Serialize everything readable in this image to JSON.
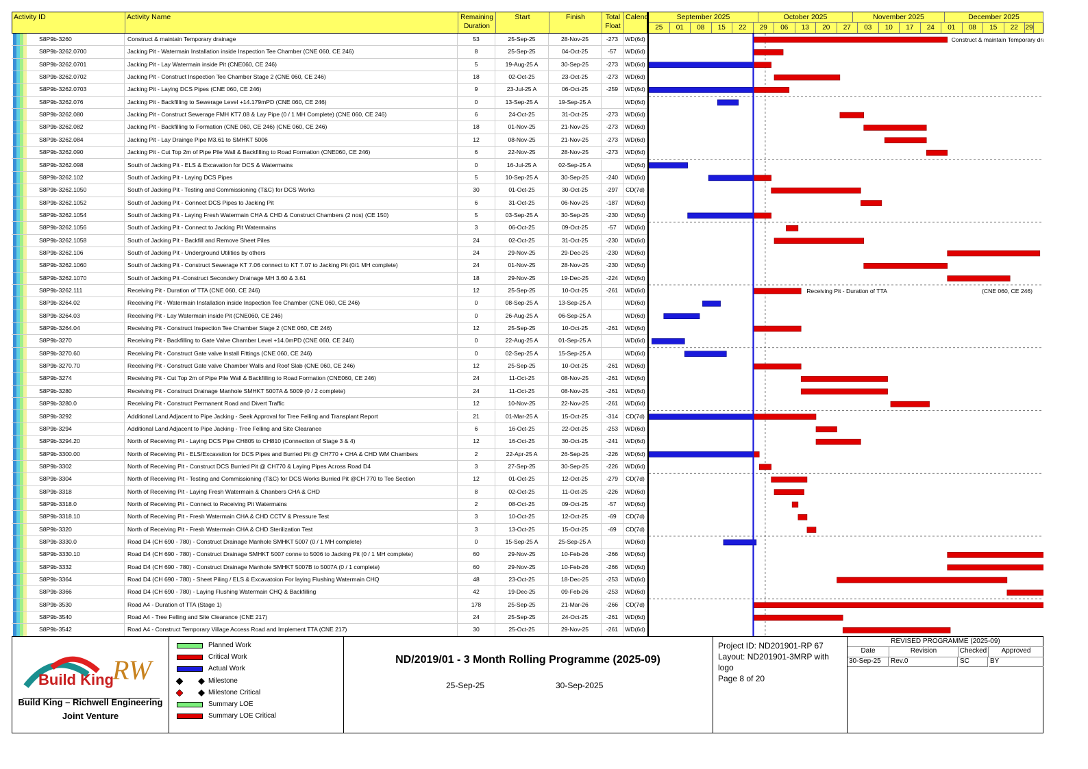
{
  "header": {
    "activity_id": "Activity ID",
    "activity_name": "Activity Name",
    "remaining_duration": "Remaining Duration",
    "start": "Start",
    "finish": "Finish",
    "total_float": "Total Float",
    "calendar": "Calendar"
  },
  "timeline": {
    "months": [
      "September 2025",
      "October 2025",
      "November 2025",
      "December 2025"
    ],
    "weeks": [
      "25",
      "01",
      "08",
      "15",
      "22",
      "29",
      "06",
      "13",
      "20",
      "27",
      "03",
      "10",
      "17",
      "24",
      "01",
      "08",
      "15",
      "22",
      "29"
    ]
  },
  "activities": [
    {
      "id": "S8P9b-3260",
      "name": "Construct & maintain Temporary drainage",
      "rem": "53",
      "start": "25-Sep-25",
      "finish": "28-Nov-25",
      "tf": "-273",
      "cal": "WD(6d)"
    },
    {
      "id": "S8P9b-3262.0700",
      "name": "Jacking Pit - Watermain Installation inside Inspection Tee Chamber   (CNE 060, CE 246)",
      "rem": "8",
      "start": "25-Sep-25",
      "finish": "04-Oct-25",
      "tf": "-57",
      "cal": "WD(6d)"
    },
    {
      "id": "S8P9b-3262.0701",
      "name": "Jacking Pit - Lay Watermain inside Pit                                       (CNE060, CE 246)",
      "rem": "5",
      "start": "19-Aug-25 A",
      "finish": "30-Sep-25",
      "tf": "-273",
      "cal": "WD(6d)"
    },
    {
      "id": "S8P9b-3262.0702",
      "name": "Jacking Pit - Construct Inspection Tee Chamber Stage 2     (CNE 060, CE 246)",
      "rem": "18",
      "start": "02-Oct-25",
      "finish": "23-Oct-25",
      "tf": "-273",
      "cal": "WD(6d)"
    },
    {
      "id": "S8P9b-3262.0703",
      "name": "Jacking Pit - Laying DCS Pipes                                               (CNE 060, CE 246)",
      "rem": "9",
      "start": "23-Jul-25 A",
      "finish": "06-Oct-25",
      "tf": "-259",
      "cal": "WD(6d)"
    },
    {
      "id": "S8P9b-3262.076",
      "name": "Jacking Pit - Backfilling to Sewerage Level +14.179mPD                         (CNE 060, CE 246)",
      "rem": "0",
      "start": "13-Sep-25 A",
      "finish": "19-Sep-25 A",
      "tf": "",
      "cal": "WD(6d)"
    },
    {
      "id": "S8P9b-3262.080",
      "name": "Jacking Pit - Construct Sewerage FMH KT7.08 & Lay Pipe (0 / 1 MH Complete)             (CNE 060, CE 246)",
      "rem": "6",
      "start": "24-Oct-25",
      "finish": "31-Oct-25",
      "tf": "-273",
      "cal": "WD(6d)"
    },
    {
      "id": "S8P9b-3262.082",
      "name": "Jacking Pit - Backfilling to Formation (CNE 060, CE 246)                                  (CNE 060, CE 246)",
      "rem": "18",
      "start": "01-Nov-25",
      "finish": "21-Nov-25",
      "tf": "-273",
      "cal": "WD(6d)"
    },
    {
      "id": "S8P9b-3262.084",
      "name": "Jacking Pit - Lay Drainge Pipe M3.61 to SMHKT 5006",
      "rem": "12",
      "start": "08-Nov-25",
      "finish": "21-Nov-25",
      "tf": "-273",
      "cal": "WD(6d)"
    },
    {
      "id": "S8P9b-3262.090",
      "name": "Jacking Pit - Cut Top 2m of Pipe Pile Wall & Backfilling to Road Formation          (CNE060, CE 246)",
      "rem": "6",
      "start": "22-Nov-25",
      "finish": "28-Nov-25",
      "tf": "-273",
      "cal": "WD(6d)"
    },
    {
      "id": "S8P9b-3262.098",
      "name": "South of Jacking Pit - ELS & Excavation for DCS & Watermains",
      "rem": "0",
      "start": "16-Jul-25 A",
      "finish": "02-Sep-25 A",
      "tf": "",
      "cal": "WD(6d)"
    },
    {
      "id": "S8P9b-3262.102",
      "name": "South of Jacking Pit - Laying DCS Pipes",
      "rem": "5",
      "start": "10-Sep-25 A",
      "finish": "30-Sep-25",
      "tf": "-240",
      "cal": "WD(6d)"
    },
    {
      "id": "S8P9b-3262.1050",
      "name": "South of Jacking Pit - Testing and Commissioning (T&C) for DCS Works",
      "rem": "30",
      "start": "01-Oct-25",
      "finish": "30-Oct-25",
      "tf": "-297",
      "cal": "CD(7d)"
    },
    {
      "id": "S8P9b-3262.1052",
      "name": "South of Jacking Pit -  Connect DCS Pipes to Jacking Pit",
      "rem": "6",
      "start": "31-Oct-25",
      "finish": "06-Nov-25",
      "tf": "-187",
      "cal": "WD(6d)"
    },
    {
      "id": "S8P9b-3262.1054",
      "name": "South of Jacking Pit - Laying Fresh Watermain  CHA & CHD & Construct Chambers (2 nos)          (CE 150)",
      "rem": "5",
      "start": "03-Sep-25 A",
      "finish": "30-Sep-25",
      "tf": "-230",
      "cal": "WD(6d)"
    },
    {
      "id": "S8P9b-3262.1056",
      "name": "South of Jacking Pit - Connect to Jacking Pit Watermains",
      "rem": "3",
      "start": "06-Oct-25",
      "finish": "09-Oct-25",
      "tf": "-57",
      "cal": "WD(6d)"
    },
    {
      "id": "S8P9b-3262.1058",
      "name": "South of Jacking Pit - Backfill and Remove Sheet Piles",
      "rem": "24",
      "start": "02-Oct-25",
      "finish": "31-Oct-25",
      "tf": "-230",
      "cal": "WD(6d)"
    },
    {
      "id": "S8P9b-3262.106",
      "name": "South of Jacking Pit - Underground Utilities by others",
      "rem": "24",
      "start": "29-Nov-25",
      "finish": "29-Dec-25",
      "tf": "-230",
      "cal": "WD(6d)"
    },
    {
      "id": "S8P9b-3262.1060",
      "name": "South of Jacking Pit - Construct Sewerage KT 7.06 connect to KT 7.07 to Jacking Pit (0/1 MH complete)",
      "rem": "24",
      "start": "01-Nov-25",
      "finish": "28-Nov-25",
      "tf": "-230",
      "cal": "WD(6d)"
    },
    {
      "id": "S8P9b-3262.1070",
      "name": "South of Jacking Pit -Construct Secondery Drainage MH 3.60 & 3.61",
      "rem": "18",
      "start": "29-Nov-25",
      "finish": "19-Dec-25",
      "tf": "-224",
      "cal": "WD(6d)"
    },
    {
      "id": "S8P9b-3262.111",
      "name": "Receiving Pit - Duration of TTA                                                     (CNE 060, CE 246)",
      "rem": "12",
      "start": "25-Sep-25",
      "finish": "10-Oct-25",
      "tf": "-261",
      "cal": "WD(6d)"
    },
    {
      "id": "S8P9b-3264.02",
      "name": "Receiving Pit - Watermain Installation inside Inspection Tee Chamber        (CNE 060, CE 246)",
      "rem": "0",
      "start": "08-Sep-25 A",
      "finish": "13-Sep-25 A",
      "tf": "",
      "cal": "WD(6d)"
    },
    {
      "id": "S8P9b-3264.03",
      "name": "Receiving Pit - Lay Watermain inside Pit                                            (CNE060, CE 246)",
      "rem": "0",
      "start": "26-Aug-25 A",
      "finish": "06-Sep-25 A",
      "tf": "",
      "cal": "WD(6d)"
    },
    {
      "id": "S8P9b-3264.04",
      "name": "Receiving Pit - Construct Inspection Tee Chamber Stage 2                         (CNE 060, CE 246)",
      "rem": "12",
      "start": "25-Sep-25",
      "finish": "10-Oct-25",
      "tf": "-261",
      "cal": "WD(6d)"
    },
    {
      "id": "S8P9b-3270",
      "name": "Receiving Pit - Backfilling to Gate Valve Chamber Level    +14.0mPD              (CNE 060, CE 246)",
      "rem": "0",
      "start": "22-Aug-25 A",
      "finish": "01-Sep-25 A",
      "tf": "",
      "cal": "WD(6d)"
    },
    {
      "id": "S8P9b-3270.60",
      "name": "Receiving Pit - Construct Gate valve Install Fittings                (CNE 060, CE 246)",
      "rem": "0",
      "start": "02-Sep-25 A",
      "finish": "15-Sep-25 A",
      "tf": "",
      "cal": "WD(6d)"
    },
    {
      "id": "S8P9b-3270.70",
      "name": "Receiving Pit - Construct Gate valve Chamber Walls and Roof Slab    (CNE 060, CE 246)",
      "rem": "12",
      "start": "25-Sep-25",
      "finish": "10-Oct-25",
      "tf": "-261",
      "cal": "WD(6d)"
    },
    {
      "id": "S8P9b-3274",
      "name": "Receiving Pit - Cut Top 2m of Pipe Pile Wall & Backfilling to Road Formation        (CNE060, CE 246)",
      "rem": "24",
      "start": "11-Oct-25",
      "finish": "08-Nov-25",
      "tf": "-261",
      "cal": "WD(6d)"
    },
    {
      "id": "S8P9b-3280",
      "name": "Receiving Pit - Construct Drainage Manhole SMHKT 5007A & 5009 (0 / 2 complete)",
      "rem": "24",
      "start": "11-Oct-25",
      "finish": "08-Nov-25",
      "tf": "-261",
      "cal": "WD(6d)"
    },
    {
      "id": "S8P9b-3280.0",
      "name": "Receiving Pit -  Construct Permanent Road and Divert Traffic",
      "rem": "12",
      "start": "10-Nov-25",
      "finish": "22-Nov-25",
      "tf": "-261",
      "cal": "WD(6d)"
    },
    {
      "id": "S8P9b-3292",
      "name": "Additional Land Adjacent to Pipe Jacking - Seek Approval for Tree Felling and Transplant Report",
      "rem": "21",
      "start": "01-Mar-25 A",
      "finish": "15-Oct-25",
      "tf": "-314",
      "cal": "CD(7d)"
    },
    {
      "id": "S8P9b-3294",
      "name": "Additional Land Adjacent to Pipe Jacking - Tree Felling and Site Clearance",
      "rem": "6",
      "start": "16-Oct-25",
      "finish": "22-Oct-25",
      "tf": "-253",
      "cal": "WD(6d)"
    },
    {
      "id": "S8P9b-3294.20",
      "name": "North of Receiving Pit - Laying DCS Pipe CH805 to CH810  (Connection of Stage 3 & 4)",
      "rem": "12",
      "start": "16-Oct-25",
      "finish": "30-Oct-25",
      "tf": "-241",
      "cal": "WD(6d)"
    },
    {
      "id": "S8P9b-3300.00",
      "name": "North of Receiving Pit - ELS/Excavation for DCS Pipes and Burried Pit @ CH770 + CHA & CHD WM Chambers",
      "rem": "2",
      "start": "22-Apr-25 A",
      "finish": "26-Sep-25",
      "tf": "-226",
      "cal": "WD(6d)"
    },
    {
      "id": "S8P9b-3302",
      "name": "North of Receiving Pit - Construct DCS Burried Pit @ CH770 & Laying Pipes Across Road D4",
      "rem": "3",
      "start": "27-Sep-25",
      "finish": "30-Sep-25",
      "tf": "-226",
      "cal": "WD(6d)"
    },
    {
      "id": "S8P9b-3304",
      "name": "North of Receiving Pit - Testing and Commissioning (T&C) for DCS Works Burried Pit @CH 770 to Tee Section",
      "rem": "12",
      "start": "01-Oct-25",
      "finish": "12-Oct-25",
      "tf": "-279",
      "cal": "CD(7d)"
    },
    {
      "id": "S8P9b-3318",
      "name": "North of Receiving Pit - Laying Fresh Watermain & Chanbers CHA & CHD",
      "rem": "8",
      "start": "02-Oct-25",
      "finish": "11-Oct-25",
      "tf": "-226",
      "cal": "WD(6d)"
    },
    {
      "id": "S8P9b-3318.0",
      "name": "North of Receiving Pit - Connect to Receiving Pit Watermains",
      "rem": "2",
      "start": "08-Oct-25",
      "finish": "09-Oct-25",
      "tf": "-57",
      "cal": "WD(6d)"
    },
    {
      "id": "S8P9b-3318.10",
      "name": "North of Receiving Pit - Fresh Watermain CHA & CHD CCTV & Pressure Test",
      "rem": "3",
      "start": "10-Oct-25",
      "finish": "12-Oct-25",
      "tf": "-69",
      "cal": "CD(7d)"
    },
    {
      "id": "S8P9b-3320",
      "name": "North of Receiving Pit - Fresh Watermain CHA & CHD Sterilization Test",
      "rem": "3",
      "start": "13-Oct-25",
      "finish": "15-Oct-25",
      "tf": "-69",
      "cal": "CD(7d)"
    },
    {
      "id": "S8P9b-3330.0",
      "name": "Road D4 (CH 690 - 780) - Construct Drainage Manhole SMHKT 5007 (0 / 1 MH complete)",
      "rem": "0",
      "start": "15-Sep-25 A",
      "finish": "25-Sep-25 A",
      "tf": "",
      "cal": "WD(6d)"
    },
    {
      "id": "S8P9b-3330.10",
      "name": "Road D4 (CH 690 - 780) - Construct Drainage SMHKT 5007 conne to 5006 to Jacking Pit  (0 / 1 MH complete)",
      "rem": "60",
      "start": "29-Nov-25",
      "finish": "10-Feb-26",
      "tf": "-266",
      "cal": "WD(6d)"
    },
    {
      "id": "S8P9b-3332",
      "name": "Road D4 (CH 690 - 780) - Construct Drainage Manhole SMHKT 5007B to 5007A (0 / 1 complete)",
      "rem": "60",
      "start": "29-Nov-25",
      "finish": "10-Feb-26",
      "tf": "-266",
      "cal": "WD(6d)"
    },
    {
      "id": "S8P9b-3364",
      "name": "Road D4 (CH 690 - 780) - Sheet Piling / ELS & Excavatoion For laying Flushing Watermain CHQ",
      "rem": "48",
      "start": "23-Oct-25",
      "finish": "18-Dec-25",
      "tf": "-253",
      "cal": "WD(6d)"
    },
    {
      "id": "S8P9b-3366",
      "name": "Road D4 (CH 690 - 780) - Laying Flushing Watermain CHQ & Backfilling",
      "rem": "42",
      "start": "19-Dec-25",
      "finish": "09-Feb-26",
      "tf": "-253",
      "cal": "WD(6d)"
    },
    {
      "id": "S8P9b-3530",
      "name": "Road A4 - Duration of TTA (Stage 1)",
      "rem": "178",
      "start": "25-Sep-25",
      "finish": "21-Mar-26",
      "tf": "-266",
      "cal": "CD(7d)"
    },
    {
      "id": "S8P9b-3540",
      "name": "Road A4 - Tree Felling and Site Clearance                                    (CNE 217)",
      "rem": "24",
      "start": "25-Sep-25",
      "finish": "24-Oct-25",
      "tf": "-261",
      "cal": "WD(6d)"
    },
    {
      "id": "S8P9b-3542",
      "name": "Road A4 - Construct Temporary Village Access Road and Implement TTA                  (CNE 217)",
      "rem": "30",
      "start": "25-Oct-25",
      "finish": "29-Nov-25",
      "tf": "-261",
      "cal": "WD(6d)"
    }
  ],
  "bar_labels": {
    "row0": "Construct & maintain Temporary drai",
    "row20_left": "Receiving Pit - Duration of TTA",
    "row20_right": "(CNE 060, CE 246)"
  },
  "legend": [
    {
      "label": "Planned Work",
      "kind": "swatch",
      "color": "#7cf07c"
    },
    {
      "label": "Critical Work",
      "kind": "swatch",
      "color": "#e00000"
    },
    {
      "label": "Actual Work",
      "kind": "swatch",
      "color": "#1a1adb"
    },
    {
      "label": "Milestone",
      "kind": "diamond",
      "color": "#000000"
    },
    {
      "label": "Milestone Critical",
      "kind": "diamond",
      "color": "#e00000"
    },
    {
      "label": "Summary LOE",
      "kind": "swatch",
      "color": "#7cf07c"
    },
    {
      "label": "Summary LOE Critical",
      "kind": "swatch",
      "color": "#e00000"
    }
  ],
  "logo": {
    "brand1": "Build King",
    "brand2": "RW",
    "caption1": "Build King – Richwell Engineering",
    "caption2": "Joint Venture"
  },
  "title": {
    "main": "ND/2019/01 - 3 Month Rolling Programme (2025-09)",
    "data_date": "25-Sep-25",
    "print_date": "30-Sep-2025"
  },
  "project": {
    "id": "Project ID: ND201901-RP 67",
    "layout": "Layout: ND201901-3MRP with logo",
    "page": "Page 8 of 20"
  },
  "revision": {
    "title": "REVISED PROGRAMME (2025-09)",
    "headers": [
      "Date",
      "Revision",
      "Checked",
      "Approved"
    ],
    "row": [
      "30-Sep-25",
      "Rev.0",
      "SC",
      "BY"
    ]
  }
}
